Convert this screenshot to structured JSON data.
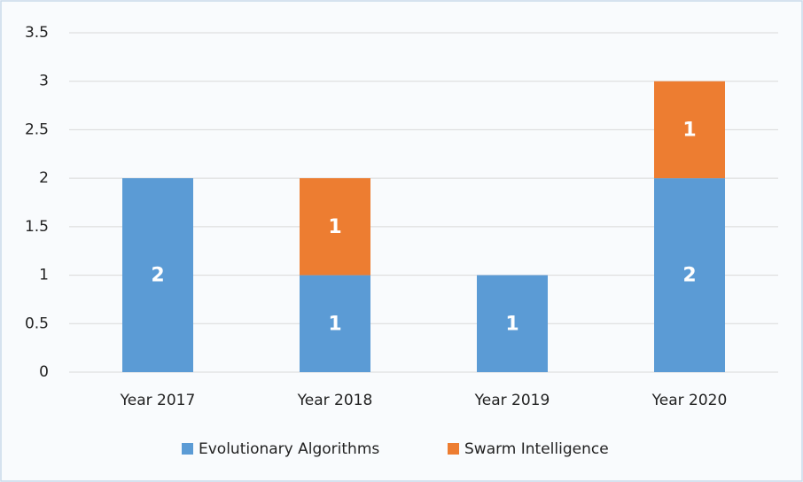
{
  "chart_data": {
    "type": "stacked-bar",
    "categories": [
      "Year 2017",
      "Year 2018",
      "Year 2019",
      "Year 2020"
    ],
    "series": [
      {
        "name": "Evolutionary Algorithms",
        "color": "#5b9bd5",
        "values": [
          2,
          1,
          1,
          2
        ]
      },
      {
        "name": "Swarm Intelligence",
        "color": "#ed7d31",
        "values": [
          null,
          1,
          null,
          1
        ]
      }
    ],
    "ylim": [
      0,
      3.5
    ],
    "yticks": [
      0,
      0.5,
      1,
      1.5,
      2,
      2.5,
      3,
      3.5
    ],
    "grid": true,
    "legend": "bottom",
    "data_labels": true
  }
}
